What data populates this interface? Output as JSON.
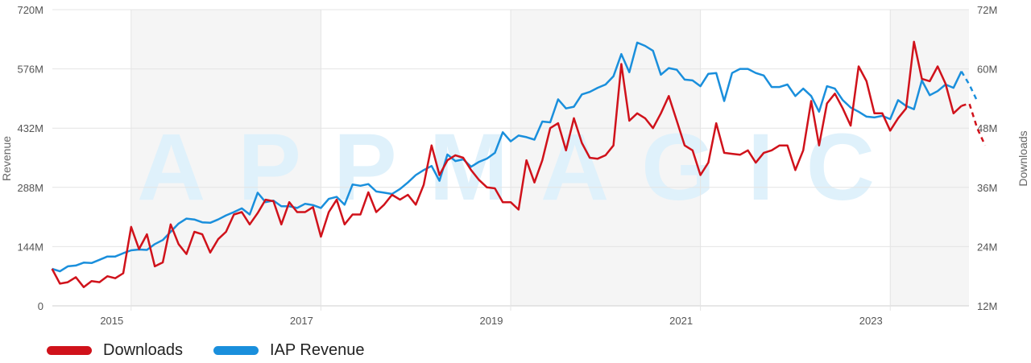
{
  "colors": {
    "downloads": "#d0121b",
    "revenue": "#1a8fdc",
    "grid": "#e4e4e4",
    "band": "#f5f5f5",
    "watermark": "#dff1fb"
  },
  "watermark": "APPMAGIC",
  "legend": [
    {
      "key": "downloads",
      "label": "Downloads"
    },
    {
      "key": "revenue",
      "label": "IAP Revenue"
    }
  ],
  "chart_data": {
    "type": "line",
    "ylabel_left": "Revenue",
    "ylabel_right": "Downloads",
    "left_ticks": [
      "0",
      "144M",
      "288M",
      "432M",
      "576M",
      "720M"
    ],
    "left_range": [
      0,
      720
    ],
    "right_ticks": [
      "12M",
      "24M",
      "36M",
      "48M",
      "60M",
      "72M"
    ],
    "right_range": [
      12,
      72
    ],
    "x_ticks": [
      "2015",
      "2017",
      "2019",
      "2021",
      "2023"
    ],
    "x_range": [
      2014.17,
      2023.83
    ],
    "shaded_years": [
      [
        2015,
        2017
      ],
      [
        2019,
        2021
      ],
      [
        2023,
        2023.83
      ]
    ],
    "x_start": 2014.1667,
    "x_step_months": 1,
    "series": [
      {
        "name": "IAP Revenue",
        "axis": "left",
        "values": [
          90,
          84,
          96,
          98,
          105,
          104,
          112,
          120,
          120,
          128,
          135,
          137,
          136,
          150,
          160,
          180,
          200,
          212,
          210,
          203,
          202,
          210,
          220,
          228,
          237,
          222,
          275,
          252,
          256,
          242,
          242,
          238,
          248,
          245,
          238,
          260,
          265,
          246,
          295,
          292,
          296,
          278,
          275,
          272,
          284,
          300,
          318,
          330,
          340,
          304,
          368,
          352,
          356,
          338,
          350,
          358,
          372,
          422,
          400,
          414,
          410,
          404,
          448,
          446,
          502,
          480,
          484,
          514,
          520,
          530,
          538,
          558,
          612,
          568,
          640,
          632,
          620,
          562,
          578,
          574,
          550,
          548,
          534,
          564,
          566,
          498,
          566,
          576,
          576,
          566,
          560,
          532,
          532,
          538,
          510,
          528,
          510,
          472,
          534,
          528,
          500,
          482,
          472,
          460,
          458,
          462,
          454,
          500,
          486,
          478,
          548,
          512,
          522,
          538,
          530,
          570,
          538,
          498
        ],
        "dashed_from": 115
      },
      {
        "name": "Downloads",
        "axis": "right",
        "values": [
          19.5,
          16.5,
          16.8,
          17.8,
          15.8,
          17.0,
          16.8,
          18.0,
          17.6,
          18.6,
          28.0,
          23.5,
          26.5,
          20.0,
          20.8,
          28.5,
          24.5,
          22.5,
          27.0,
          26.5,
          22.8,
          25.5,
          27.0,
          30.5,
          31.0,
          28.5,
          30.8,
          33.5,
          33.2,
          28.5,
          33.0,
          31.0,
          31.0,
          32.0,
          26.0,
          31.0,
          33.5,
          28.5,
          30.5,
          30.5,
          35.0,
          31.0,
          32.5,
          34.5,
          33.5,
          34.5,
          32.5,
          36.5,
          44.5,
          38.5,
          41.5,
          42.5,
          42.0,
          39.5,
          37.5,
          36.0,
          35.8,
          33.0,
          33.0,
          31.5,
          41.5,
          37.0,
          41.5,
          48.0,
          49.0,
          43.5,
          50.0,
          45.0,
          42.0,
          41.8,
          42.5,
          44.5,
          61.0,
          49.5,
          51.0,
          50.0,
          48.0,
          51.0,
          54.5,
          49.5,
          44.5,
          43.5,
          38.5,
          41.0,
          49.0,
          43.0,
          42.8,
          42.6,
          43.5,
          41.0,
          43.0,
          43.5,
          44.5,
          44.5,
          39.5,
          43.5,
          53.5,
          44.5,
          53.0,
          55.0,
          52.0,
          48.5,
          60.5,
          57.5,
          51.0,
          51.0,
          47.5,
          50.0,
          52.0,
          65.5,
          58.0,
          57.5,
          60.5,
          57.0,
          51.0,
          52.5,
          53.0,
          48.0,
          44.5
        ],
        "dashed_from": 115
      }
    ]
  }
}
